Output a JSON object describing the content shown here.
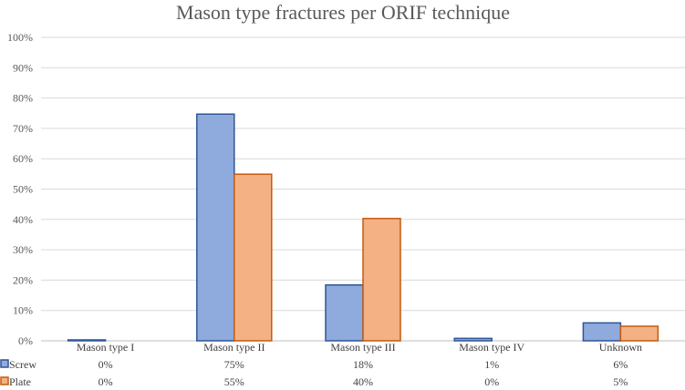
{
  "chart_data": {
    "type": "bar",
    "title": "Mason type fractures per ORIF technique",
    "categories": [
      "Mason type I",
      "Mason type II",
      "Mason type III",
      "Mason type IV",
      "Unknown"
    ],
    "series": [
      {
        "name": "Screw",
        "values": [
          0.3,
          74.7,
          18.4,
          0.8,
          5.9
        ],
        "labels": [
          "0%",
          "75%",
          "18%",
          "1%",
          "6%"
        ],
        "color": "#8FAADC",
        "stroke": "#2F5597"
      },
      {
        "name": "Plate",
        "values": [
          0,
          54.9,
          40.3,
          0,
          4.8
        ],
        "labels": [
          "0%",
          "55%",
          "40%",
          "0%",
          "5%"
        ],
        "color": "#F4B183",
        "stroke": "#C55A11"
      }
    ],
    "ylim": [
      0,
      100
    ],
    "yticks": [
      "0%",
      "10%",
      "20%",
      "30%",
      "40%",
      "50%",
      "60%",
      "70%",
      "80%",
      "90%",
      "100%"
    ],
    "grid": true,
    "legend": "data table"
  }
}
